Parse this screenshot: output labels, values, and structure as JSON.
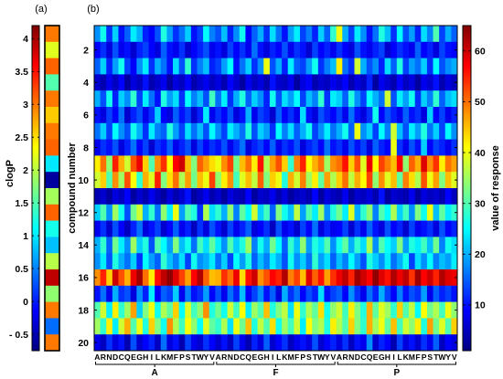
{
  "colormap_stops": [
    {
      "offset": 0,
      "color": "#000080"
    },
    {
      "offset": 0.125,
      "color": "#0000ff"
    },
    {
      "offset": 0.375,
      "color": "#00ffff"
    },
    {
      "offset": 0.625,
      "color": "#ffff00"
    },
    {
      "offset": 0.875,
      "color": "#ff0000"
    },
    {
      "offset": 1,
      "color": "#800000"
    }
  ],
  "chart_data": [
    {
      "panel_label": "(a)",
      "type": "heatmap",
      "colormap": "jet",
      "ylabel": "clogP",
      "colorbar": {
        "range": [
          -0.75,
          4.2
        ],
        "ticks": [
          4,
          3.5,
          3,
          2.5,
          2,
          1.5,
          1,
          0.5,
          0,
          -0.5
        ],
        "tick_labels": [
          "4",
          "3.5",
          "3",
          "2.5",
          "2",
          "1.5",
          "1",
          "0.5",
          "0",
          "- 0.5"
        ]
      },
      "values": [
        3.0,
        2.2,
        3.1,
        1.5,
        3.0,
        2.6,
        3.0,
        3.1,
        1.0,
        -0.6,
        1.9,
        3.1,
        1.2,
        0.8,
        2.0,
        3.9,
        1.8,
        3.0,
        0.4,
        3.0
      ]
    },
    {
      "panel_label": "(b)",
      "type": "heatmap",
      "colormap": "jet",
      "ylabel": "compound number",
      "y_ticks": [
        2,
        4,
        6,
        8,
        10,
        12,
        14,
        16,
        18,
        20
      ],
      "x_residues": [
        "A",
        "R",
        "N",
        "D",
        "C",
        "Q",
        "E",
        "G",
        "H",
        "I",
        "L",
        "K",
        "M",
        "F",
        "P",
        "S",
        "T",
        "W",
        "Y",
        "V"
      ],
      "x_groups": [
        "A",
        "F",
        "P"
      ],
      "colorbar": {
        "label": "value of response",
        "range": [
          1,
          65
        ],
        "ticks": [
          10,
          20,
          30,
          40,
          50,
          60
        ]
      },
      "values": [
        [
          18,
          26,
          12,
          22,
          10,
          15,
          24,
          20,
          11,
          9,
          14,
          27,
          19,
          12,
          16,
          22,
          10,
          13,
          25,
          17,
          14,
          21,
          11,
          18,
          26,
          9,
          15,
          20,
          12,
          23,
          16,
          10,
          19,
          24,
          13,
          17,
          11,
          22,
          15,
          28,
          40,
          20,
          13,
          24,
          18,
          10,
          16,
          27,
          21,
          12,
          25,
          14,
          19,
          11,
          23,
          17,
          30,
          13,
          20,
          15
        ],
        [
          9,
          12,
          7,
          14,
          8,
          10,
          6,
          11,
          13,
          9,
          7,
          15,
          10,
          8,
          12,
          6,
          9,
          11,
          14,
          8,
          10,
          7,
          13,
          9,
          12,
          8,
          16,
          10,
          7,
          11,
          9,
          14,
          8,
          12,
          10,
          6,
          13,
          9,
          11,
          8,
          12,
          9,
          7,
          14,
          10,
          8,
          11,
          13,
          6,
          9,
          12,
          10,
          8,
          15,
          9,
          11,
          7,
          13,
          10,
          9
        ],
        [
          15,
          22,
          11,
          19,
          26,
          13,
          9,
          18,
          24,
          12,
          20,
          16,
          10,
          23,
          14,
          28,
          12,
          17,
          21,
          11,
          13,
          19,
          25,
          10,
          16,
          22,
          12,
          18,
          40,
          14,
          20,
          11,
          24,
          15,
          13,
          19,
          26,
          12,
          17,
          21,
          42,
          16,
          12,
          38,
          20,
          14,
          18,
          11,
          23,
          15,
          27,
          13,
          19,
          16,
          22,
          12,
          25,
          14,
          18,
          20
        ],
        [
          6,
          4,
          8,
          5,
          9,
          3,
          7,
          5,
          10,
          4,
          6,
          8,
          3,
          7,
          5,
          9,
          4,
          6,
          8,
          5,
          7,
          4,
          9,
          6,
          3,
          8,
          5,
          7,
          4,
          10,
          6,
          5,
          8,
          3,
          7,
          9,
          4,
          6,
          5,
          8,
          6,
          9,
          4,
          7,
          5,
          11,
          3,
          8,
          6,
          4,
          9,
          5,
          7,
          3,
          8,
          6,
          10,
          4,
          7,
          5
        ],
        [
          20,
          14,
          26,
          11,
          22,
          18,
          28,
          13,
          24,
          16,
          10,
          27,
          19,
          23,
          12,
          25,
          17,
          21,
          14,
          29,
          16,
          24,
          12,
          20,
          27,
          15,
          22,
          18,
          11,
          26,
          14,
          23,
          19,
          25,
          13,
          21,
          17,
          28,
          12,
          24,
          22,
          15,
          27,
          18,
          13,
          25,
          20,
          16,
          38,
          14,
          24,
          19,
          26,
          12,
          22,
          17,
          28,
          15,
          21,
          23
        ],
        [
          10,
          7,
          13,
          9,
          16,
          6,
          11,
          14,
          8,
          12,
          22,
          9,
          7,
          15,
          10,
          13,
          6,
          11,
          24,
          8,
          12,
          9,
          14,
          7,
          10,
          20,
          8,
          13,
          11,
          6,
          15,
          9,
          12,
          8,
          23,
          10,
          7,
          14,
          11,
          9,
          13,
          8,
          16,
          10,
          7,
          12,
          26,
          9,
          14,
          11,
          8,
          15,
          10,
          12,
          7,
          22,
          9,
          13,
          8,
          11
        ],
        [
          16,
          22,
          13,
          25,
          18,
          14,
          26,
          20,
          12,
          24,
          17,
          15,
          27,
          19,
          13,
          23,
          16,
          21,
          14,
          25,
          18,
          13,
          24,
          20,
          16,
          27,
          14,
          22,
          19,
          12,
          25,
          17,
          23,
          15,
          20,
          26,
          13,
          18,
          24,
          16,
          20,
          26,
          15,
          40,
          18,
          22,
          13,
          25,
          17,
          38,
          21,
          14,
          24,
          19,
          27,
          16,
          22,
          13,
          25,
          18
        ],
        [
          8,
          12,
          10,
          14,
          7,
          11,
          16,
          9,
          13,
          6,
          12,
          10,
          15,
          8,
          11,
          14,
          7,
          13,
          9,
          12,
          10,
          14,
          8,
          12,
          16,
          7,
          11,
          13,
          9,
          15,
          8,
          12,
          10,
          14,
          7,
          11,
          13,
          9,
          16,
          10,
          12,
          8,
          14,
          10,
          13,
          7,
          15,
          11,
          9,
          40,
          12,
          8,
          14,
          10,
          22,
          9,
          13,
          11,
          8,
          12
        ],
        [
          42,
          50,
          34,
          55,
          46,
          38,
          52,
          58,
          44,
          30,
          48,
          54,
          41,
          57,
          60,
          45,
          33,
          51,
          47,
          43,
          40,
          48,
          53,
          32,
          45,
          50,
          42,
          56,
          36,
          47,
          52,
          44,
          28,
          49,
          55,
          41,
          46,
          50,
          35,
          48,
          50,
          56,
          44,
          52,
          39,
          58,
          41,
          53,
          49,
          45,
          57,
          34,
          51,
          46,
          59,
          48,
          54,
          42,
          50,
          47
        ],
        [
          38,
          44,
          30,
          48,
          35,
          52,
          41,
          28,
          46,
          39,
          55,
          33,
          43,
          50,
          36,
          47,
          32,
          45,
          40,
          53,
          34,
          42,
          48,
          29,
          39,
          45,
          37,
          51,
          33,
          44,
          40,
          27,
          46,
          38,
          49,
          35,
          42,
          31,
          47,
          36,
          44,
          50,
          37,
          46,
          41,
          53,
          34,
          48,
          39,
          45,
          31,
          49,
          43,
          36,
          52,
          40,
          47,
          33,
          45,
          39
        ],
        [
          4,
          6,
          3,
          7,
          5,
          9,
          3,
          6,
          4,
          8,
          5,
          3,
          7,
          4,
          6,
          10,
          3,
          5,
          8,
          4,
          6,
          3,
          7,
          5,
          4,
          9,
          3,
          6,
          5,
          8,
          4,
          7,
          3,
          5,
          6,
          4,
          9,
          3,
          7,
          5,
          4,
          8,
          3,
          6,
          5,
          7,
          4,
          10,
          3,
          6,
          5,
          4,
          8,
          3,
          7,
          5,
          6,
          4,
          9,
          5
        ],
        [
          22,
          30,
          18,
          35,
          26,
          14,
          32,
          38,
          20,
          28,
          16,
          34,
          24,
          40,
          19,
          30,
          27,
          12,
          36,
          23,
          28,
          20,
          34,
          17,
          31,
          25,
          38,
          22,
          29,
          15,
          33,
          26,
          21,
          37,
          19,
          30,
          24,
          35,
          18,
          27,
          32,
          24,
          39,
          20,
          28,
          34,
          17,
          30,
          25,
          36,
          22,
          29,
          18,
          33,
          26,
          40,
          21,
          31,
          24,
          28
        ],
        [
          8,
          12,
          6,
          14,
          9,
          5,
          11,
          16,
          7,
          10,
          13,
          6,
          9,
          15,
          8,
          11,
          5,
          12,
          7,
          14,
          10,
          6,
          13,
          8,
          11,
          15,
          7,
          9,
          12,
          5,
          14,
          8,
          10,
          6,
          13,
          9,
          16,
          7,
          11,
          8,
          9,
          13,
          6,
          12,
          8,
          15,
          10,
          7,
          14,
          9,
          11,
          6,
          13,
          8,
          10,
          12,
          7,
          14,
          9,
          11
        ],
        [
          20,
          28,
          15,
          32,
          24,
          18,
          35,
          22,
          27,
          14,
          30,
          25,
          19,
          33,
          21,
          26,
          16,
          29,
          23,
          31,
          24,
          18,
          30,
          22,
          27,
          35,
          17,
          26,
          20,
          32,
          25,
          15,
          28,
          21,
          34,
          19,
          27,
          23,
          30,
          18,
          26,
          31,
          20,
          28,
          23,
          36,
          18,
          30,
          25,
          22,
          33,
          19,
          27,
          24,
          29,
          21,
          32,
          17,
          26,
          23
        ],
        [
          18,
          24,
          14,
          27,
          20,
          16,
          22,
          12,
          25,
          19,
          15,
          28,
          21,
          17,
          23,
          13,
          26,
          18,
          20,
          24,
          16,
          22,
          13,
          25,
          19,
          27,
          15,
          21,
          17,
          24,
          20,
          14,
          26,
          18,
          22,
          16,
          28,
          19,
          23,
          15,
          21,
          17,
          25,
          19,
          14,
          27,
          22,
          18,
          24,
          16,
          20,
          26,
          13,
          23,
          18,
          25,
          17,
          21,
          19,
          24
        ],
        [
          48,
          55,
          44,
          60,
          52,
          46,
          58,
          63,
          50,
          42,
          56,
          61,
          64,
          59,
          53,
          47,
          57,
          62,
          51,
          45,
          46,
          54,
          50,
          58,
          43,
          56,
          60,
          48,
          52,
          57,
          55,
          62,
          49,
          53,
          45,
          59,
          51,
          56,
          47,
          54,
          58,
          61,
          55,
          63,
          60,
          57,
          64,
          59,
          56,
          62,
          58,
          61,
          54,
          63,
          57,
          60,
          55,
          62,
          59,
          58
        ],
        [
          10,
          16,
          8,
          20,
          12,
          14,
          7,
          18,
          11,
          24,
          9,
          15,
          13,
          22,
          8,
          17,
          10,
          12,
          19,
          9,
          14,
          8,
          16,
          11,
          21,
          9,
          13,
          18,
          10,
          15,
          7,
          20,
          12,
          16,
          9,
          14,
          11,
          23,
          10,
          13,
          15,
          9,
          18,
          12,
          8,
          16,
          11,
          20,
          13,
          9,
          17,
          10,
          14,
          12,
          19,
          8,
          15,
          11,
          13,
          10
        ],
        [
          30,
          38,
          24,
          42,
          28,
          35,
          47,
          22,
          33,
          40,
          26,
          36,
          31,
          44,
          25,
          39,
          29,
          34,
          48,
          27,
          32,
          26,
          38,
          29,
          41,
          24,
          35,
          30,
          45,
          27,
          33,
          37,
          23,
          40,
          28,
          36,
          31,
          43,
          26,
          34,
          38,
          29,
          42,
          33,
          27,
          46,
          31,
          39,
          35,
          28,
          44,
          30,
          37,
          25,
          41,
          32,
          36,
          29,
          40,
          34
        ],
        [
          35,
          28,
          42,
          24,
          38,
          46,
          30,
          40,
          27,
          44,
          33,
          26,
          48,
          36,
          29,
          41,
          34,
          25,
          39,
          31,
          28,
          36,
          23,
          40,
          32,
          45,
          27,
          37,
          30,
          43,
          26,
          35,
          29,
          38,
          24,
          41,
          33,
          36,
          27,
          42,
          36,
          30,
          44,
          33,
          28,
          46,
          35,
          40,
          31,
          45,
          29,
          38,
          34,
          42,
          27,
          47,
          32,
          39,
          30,
          44
        ],
        [
          8,
          5,
          12,
          7,
          10,
          4,
          14,
          6,
          9,
          11,
          5,
          16,
          7,
          10,
          4,
          13,
          8,
          6,
          12,
          9,
          6,
          10,
          5,
          13,
          8,
          4,
          11,
          7,
          15,
          6,
          9,
          12,
          5,
          8,
          10,
          7,
          14,
          6,
          9,
          11,
          7,
          12,
          5,
          10,
          8,
          18,
          6,
          11,
          9,
          4,
          13,
          7,
          10,
          6,
          12,
          8,
          15,
          5,
          9,
          7
        ]
      ]
    }
  ]
}
